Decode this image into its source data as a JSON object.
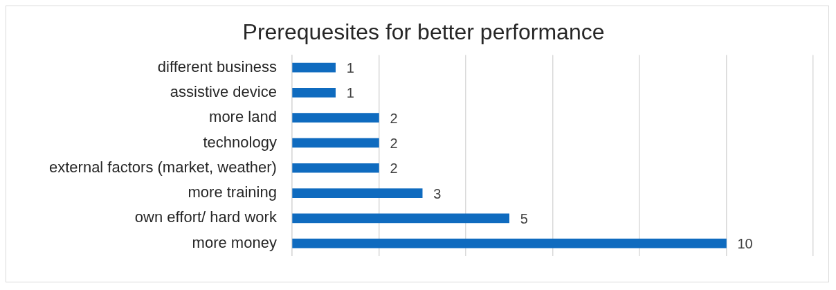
{
  "chart_data": {
    "type": "bar",
    "orientation": "horizontal",
    "title": "Prerequesites for better performance",
    "categories": [
      "different business",
      "assistive device",
      "more land",
      "technology",
      "external factors (market, weather)",
      "more training",
      "own effort/ hard work",
      "more money"
    ],
    "values": [
      1,
      1,
      2,
      2,
      2,
      3,
      5,
      10
    ],
    "color": "#0f6bbf",
    "xlim": [
      0,
      12
    ],
    "xticks": [
      {
        "value": 0,
        "label": null
      },
      {
        "value": 2,
        "label": null
      },
      {
        "value": 4,
        "label": null
      },
      {
        "value": 6,
        "label": null
      },
      {
        "value": 8,
        "label": null
      },
      {
        "value": 10,
        "label": null
      },
      {
        "value": 12,
        "label": null
      }
    ],
    "tick_labels": "y",
    "grid": "x",
    "data_labels": true,
    "legend": false
  }
}
